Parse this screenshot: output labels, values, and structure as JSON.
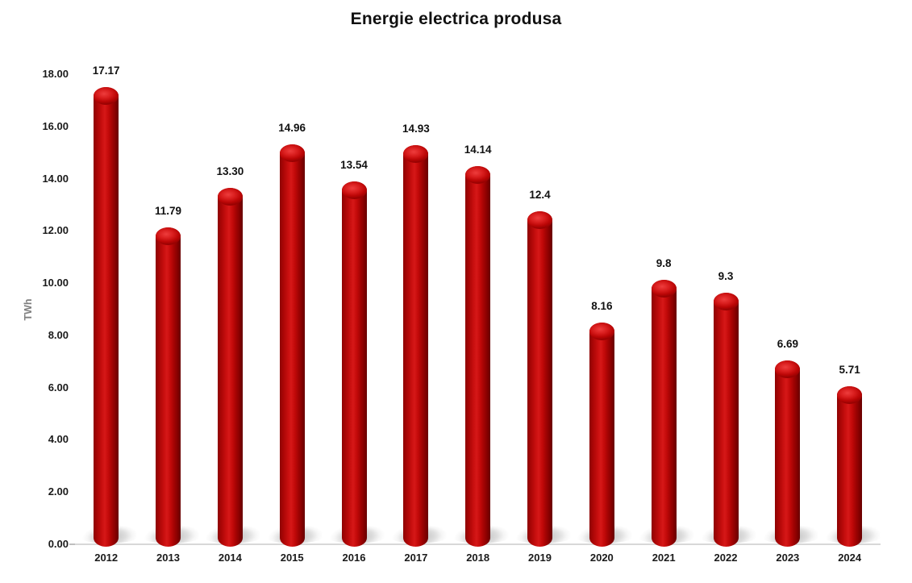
{
  "chart_data": {
    "type": "bar",
    "bar_style": "3d-cylinder",
    "title": "Energie electrica produsa",
    "xlabel": "",
    "ylabel": "TWh",
    "categories": [
      "2012",
      "2013",
      "2014",
      "2015",
      "2016",
      "2017",
      "2018",
      "2019",
      "2020",
      "2021",
      "2022",
      "2023",
      "2024"
    ],
    "values": [
      17.17,
      11.79,
      13.3,
      14.96,
      13.54,
      14.93,
      14.14,
      12.4,
      8.16,
      9.8,
      9.3,
      6.69,
      5.71
    ],
    "value_labels": [
      "17.17",
      "11.79",
      "13.30",
      "14.96",
      "13.54",
      "14.93",
      "14.14",
      "12.4",
      "8.16",
      "9.8",
      "9.3",
      "6.69",
      "5.71"
    ],
    "y_ticks": [
      "0.00",
      "2.00",
      "4.00",
      "6.00",
      "8.00",
      "10.00",
      "12.00",
      "14.00",
      "16.00",
      "18.00"
    ],
    "ylim": [
      0,
      18
    ],
    "grid": false,
    "legend": false,
    "bar_color": "#C00000",
    "axis_line_color": "#D8D8D8",
    "label_color": "#111111",
    "ylabel_color": "#7F7F7F",
    "background": "#FFFFFF"
  }
}
